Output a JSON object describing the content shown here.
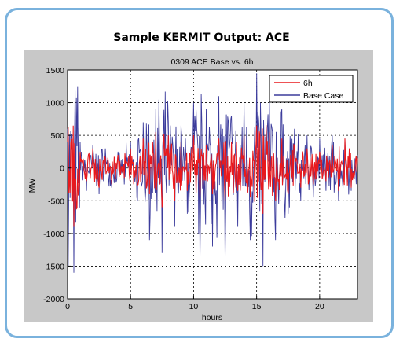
{
  "heading": "Sample KERMIT Output: ACE",
  "chart_data": {
    "type": "line",
    "title": "0309 ACE  Base vs. 6h",
    "xlabel": "hours",
    "ylabel": "MW",
    "xlim": [
      0,
      23
    ],
    "ylim": [
      -2000,
      1500
    ],
    "xticks": [
      0,
      5,
      10,
      15,
      20
    ],
    "yticks": [
      -2000,
      -1500,
      -1000,
      -500,
      0,
      500,
      1000,
      1500
    ],
    "grid": "dotted",
    "legend_position": "top-right",
    "series": [
      {
        "name": "6h",
        "color": "#e8191d",
        "x": [
          0,
          0.5,
          1,
          1.5,
          2,
          2.5,
          3,
          3.5,
          4,
          4.5,
          5,
          5.5,
          6,
          6.5,
          7,
          7.5,
          8,
          8.5,
          9,
          9.5,
          10,
          10.5,
          11,
          11.5,
          12,
          12.5,
          13,
          13.5,
          14,
          14.5,
          15,
          15.5,
          16,
          16.5,
          17,
          17.5,
          18,
          18.5,
          19,
          19.5,
          20,
          20.5,
          21,
          21.5,
          22,
          22.5,
          23
        ],
        "values": [
          400,
          -900,
          250,
          -200,
          300,
          -300,
          150,
          -250,
          200,
          -150,
          300,
          -200,
          450,
          -400,
          550,
          -600,
          500,
          -500,
          400,
          -350,
          500,
          -450,
          350,
          -400,
          450,
          -500,
          400,
          -350,
          500,
          -450,
          650,
          -700,
          550,
          -500,
          450,
          -400,
          350,
          -300,
          300,
          -250,
          250,
          -200,
          350,
          -350,
          450,
          -300,
          150
        ]
      },
      {
        "name": "Base Case",
        "color": "#3c3c9c",
        "x": [
          0,
          0.5,
          1,
          1.5,
          2,
          2.5,
          3,
          3.5,
          4,
          4.5,
          5,
          5.5,
          6,
          6.5,
          7,
          7.5,
          8,
          8.5,
          9,
          9.5,
          10,
          10.5,
          11,
          11.5,
          12,
          12.5,
          13,
          13.5,
          14,
          14.5,
          15,
          15.5,
          16,
          16.5,
          17,
          17.5,
          18,
          18.5,
          19,
          19.5,
          20,
          20.5,
          21,
          21.5,
          22,
          22.5,
          23
        ],
        "values": [
          600,
          -1600,
          400,
          -350,
          350,
          -400,
          300,
          -300,
          250,
          -250,
          400,
          -450,
          700,
          -1100,
          900,
          -1300,
          700,
          -900,
          650,
          -700,
          1000,
          -1400,
          900,
          -1200,
          1100,
          -1400,
          800,
          -900,
          1000,
          -1100,
          1450,
          -1500,
          1200,
          -1100,
          900,
          -700,
          600,
          -500,
          500,
          -450,
          450,
          -350,
          500,
          -500,
          450,
          -350,
          200
        ]
      }
    ]
  }
}
